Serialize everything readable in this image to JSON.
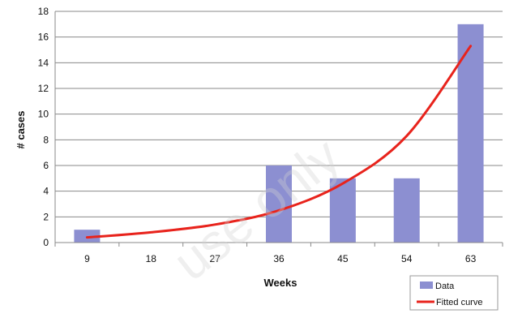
{
  "chart_data": {
    "type": "bar",
    "xlabel": "Weeks",
    "ylabel": "# cases",
    "ylim": [
      0,
      18
    ],
    "y_ticks": [
      0,
      2,
      4,
      6,
      8,
      10,
      12,
      14,
      16,
      18
    ],
    "categories": [
      "9",
      "18",
      "27",
      "36",
      "45",
      "54",
      "63"
    ],
    "grid": "horizontal",
    "legend_position": "bottom-right",
    "series": [
      {
        "name": "Data",
        "type": "bar",
        "color": "#8c8fd1",
        "values": [
          1,
          0,
          0,
          6,
          5,
          5,
          17
        ]
      },
      {
        "name": "Fitted curve",
        "type": "line",
        "color": "#e8231c",
        "x": [
          9,
          18,
          27,
          36,
          45,
          54,
          63
        ],
        "values": [
          0.4,
          0.8,
          1.4,
          2.5,
          4.6,
          8.3,
          15.3
        ]
      }
    ],
    "watermark_text": "use only"
  }
}
